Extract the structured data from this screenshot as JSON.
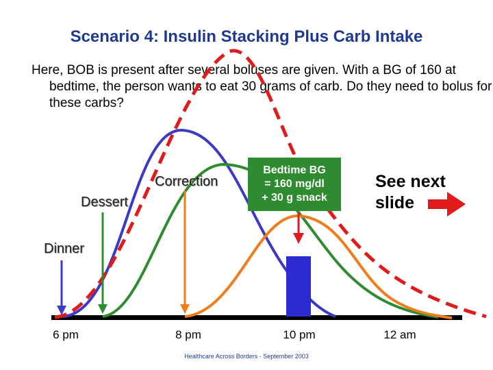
{
  "title": "Scenario 4: Insulin Stacking Plus Carb Intake",
  "body_text": "Here, BOB is present after several boluses are given. With a BG of 160 at bedtime, the person wants to eat 30 grams of carb. Do they need to bolus for these carbs?",
  "labels": {
    "dinner": "Dinner",
    "dessert": "Dessert",
    "correction": "Correction"
  },
  "bedtime_box": {
    "line1": "Bedtime BG",
    "line2": "= 160 mg/dl",
    "line3": "+ 30 g snack"
  },
  "see_next": {
    "line1": "See next",
    "line2": "slide"
  },
  "time_axis": [
    "6 pm",
    "8 pm",
    "10 pm",
    "12 am"
  ],
  "footer": "Healthcare Across Borders  -  September 2003",
  "colors": {
    "title": "#1f3a93",
    "dinner_curve": "#3a3ac4",
    "dessert_curve": "#2f8b2f",
    "correction_curve": "#f07c1c",
    "total_curve": "#e01b1b",
    "snack_bar": "#2b2bd1"
  },
  "curve_semantics": {
    "blue": "Dinner bolus",
    "green": "Dessert bolus",
    "orange": "Correction bolus",
    "red_dashed": "Total BOB (stacked)"
  }
}
